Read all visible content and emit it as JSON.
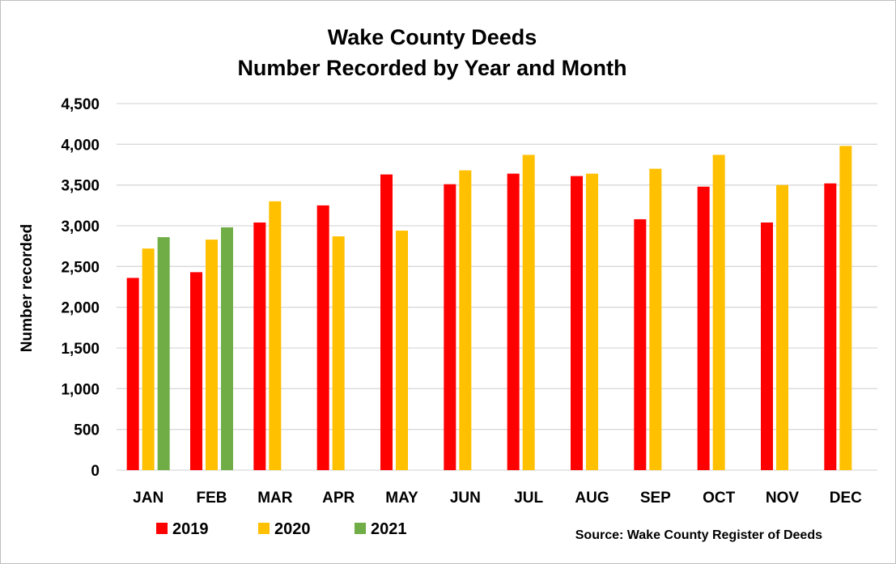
{
  "chart_data": {
    "type": "bar",
    "title_lines": [
      "Wake County Deeds",
      "Number Recorded by Year and Month"
    ],
    "xlabel": "",
    "ylabel": "Number recorded",
    "ylim": [
      0,
      4500
    ],
    "yticks": [
      0,
      500,
      1000,
      1500,
      2000,
      2500,
      3000,
      3500,
      4000,
      4500
    ],
    "ytick_labels": [
      "0",
      "500",
      "1,000",
      "1,500",
      "2,000",
      "2,500",
      "3,000",
      "3,500",
      "4,000",
      "4,500"
    ],
    "grid": true,
    "legend_position": "bottom-left",
    "categories": [
      "JAN",
      "FEB",
      "MAR",
      "APR",
      "MAY",
      "JUN",
      "JUL",
      "AUG",
      "SEP",
      "OCT",
      "NOV",
      "DEC"
    ],
    "series": [
      {
        "name": "2019",
        "color": "#ff0000",
        "values": [
          2360,
          2430,
          3040,
          3250,
          3630,
          3510,
          3640,
          3610,
          3080,
          3480,
          3040,
          3520
        ]
      },
      {
        "name": "2020",
        "color": "#ffc000",
        "values": [
          2720,
          2830,
          3300,
          2870,
          2940,
          3680,
          3870,
          3640,
          3700,
          3870,
          3500,
          3980
        ]
      },
      {
        "name": "2021",
        "color": "#70ad47",
        "values": [
          2860,
          2980,
          null,
          null,
          null,
          null,
          null,
          null,
          null,
          null,
          null,
          null
        ]
      }
    ],
    "source": "Source: Wake County Register of Deeds"
  }
}
